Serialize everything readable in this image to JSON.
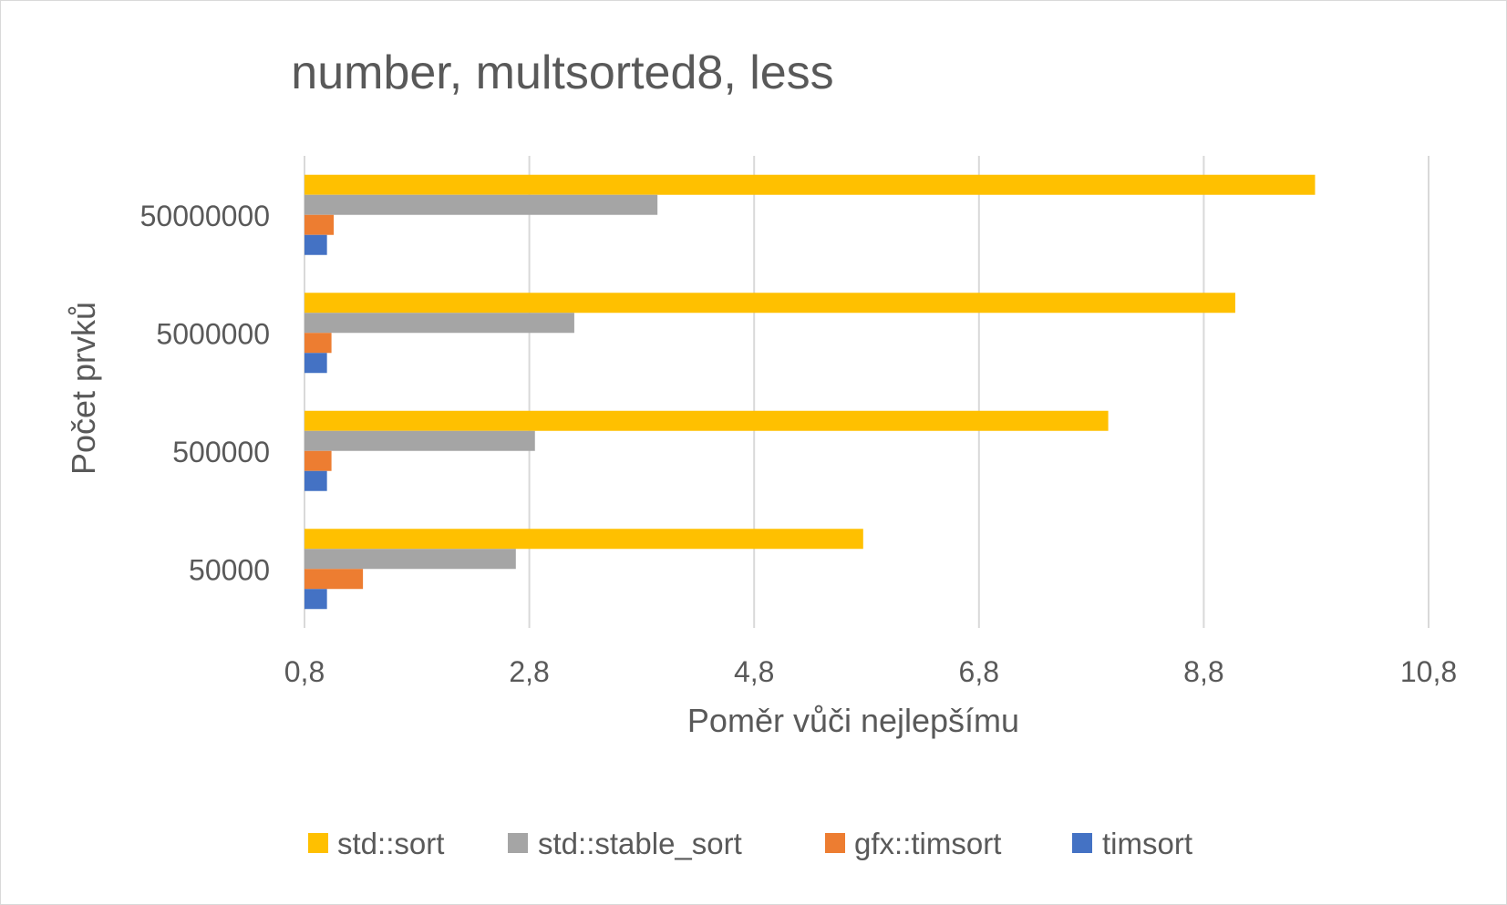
{
  "chart_data": {
    "type": "bar",
    "orientation": "horizontal",
    "title": "number, multsorted8, less",
    "xlabel": "Poměr vůči nejlepšímu",
    "ylabel": "Počet prvků",
    "categories": [
      "50000",
      "500000",
      "5000000",
      "50000000"
    ],
    "xlim": [
      0.8,
      10.8
    ],
    "xticks": [
      "0,8",
      "2,8",
      "4,8",
      "6,8",
      "8,8",
      "10,8"
    ],
    "xtick_values": [
      0.8,
      2.8,
      4.8,
      6.8,
      8.8,
      10.8
    ],
    "grid": true,
    "legend_position": "bottom",
    "series": [
      {
        "name": "std::sort",
        "color": "#ffc000",
        "values": [
          5.77,
          7.95,
          9.08,
          9.79
        ]
      },
      {
        "name": "std::stable_sort",
        "color": "#a5a5a5",
        "values": [
          2.68,
          2.85,
          3.2,
          3.94
        ]
      },
      {
        "name": "gfx::timsort",
        "color": "#ed7d31",
        "values": [
          1.32,
          1.04,
          1.04,
          1.06
        ]
      },
      {
        "name": "timsort",
        "color": "#4472c4",
        "values": [
          1.0,
          1.0,
          1.0,
          1.0
        ]
      }
    ]
  }
}
